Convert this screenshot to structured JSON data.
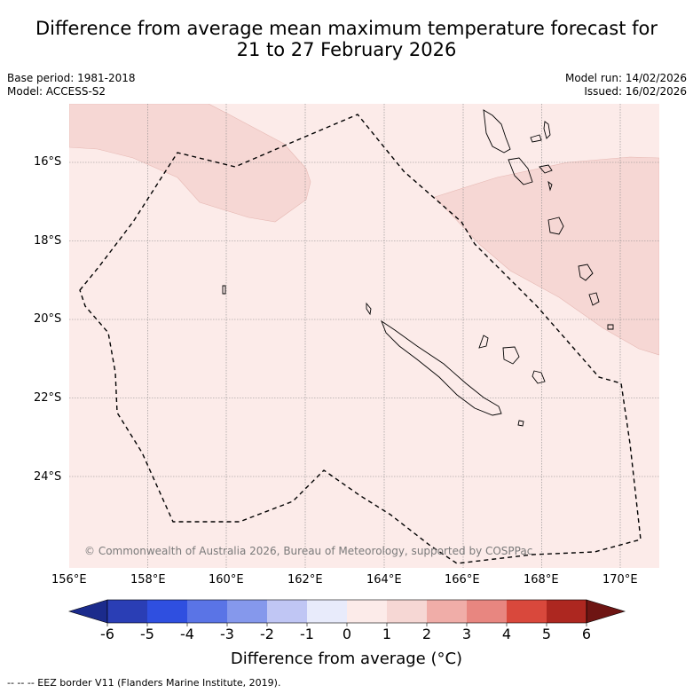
{
  "header": {
    "title_line1": "Difference from average mean maximum temperature forecast for",
    "title_line2": "21 to 27 February 2026",
    "base_period": "Base period: 1981-2018",
    "model": "Model: ACCESS-S2",
    "model_run": "Model run: 14/02/2026",
    "issued": "Issued: 16/02/2026"
  },
  "map": {
    "copyright": "© Commonwealth of Australia 2026, Bureau of Meteorology, supported by COSPPac",
    "lon_labels": [
      "156°E",
      "158°E",
      "160°E",
      "162°E",
      "164°E",
      "166°E",
      "168°E",
      "170°E"
    ],
    "lat_labels": [
      "16°S",
      "18°S",
      "20°S",
      "22°S",
      "24°S"
    ],
    "background_color": "#fcebe9",
    "anomaly_color": "#f6d7d4"
  },
  "colorbar": {
    "ticks": [
      "-6",
      "-5",
      "-4",
      "-3",
      "-2",
      "-1",
      "0",
      "1",
      "2",
      "3",
      "4",
      "5",
      "6"
    ],
    "colors": [
      "#1b2b8c",
      "#2a3eb5",
      "#2f4fe0",
      "#5a74e6",
      "#8598ec",
      "#c0c6f4",
      "#e8ebfb",
      "#fcebe9",
      "#f6d7d4",
      "#f0ada8",
      "#e88680",
      "#d9483c",
      "#ad2720",
      "#6e1513"
    ],
    "label": "Difference from average (°C)"
  },
  "footer": {
    "eez_note": "--  --  -- EEZ border V11 (Flanders Marine Institute, 2019)."
  }
}
